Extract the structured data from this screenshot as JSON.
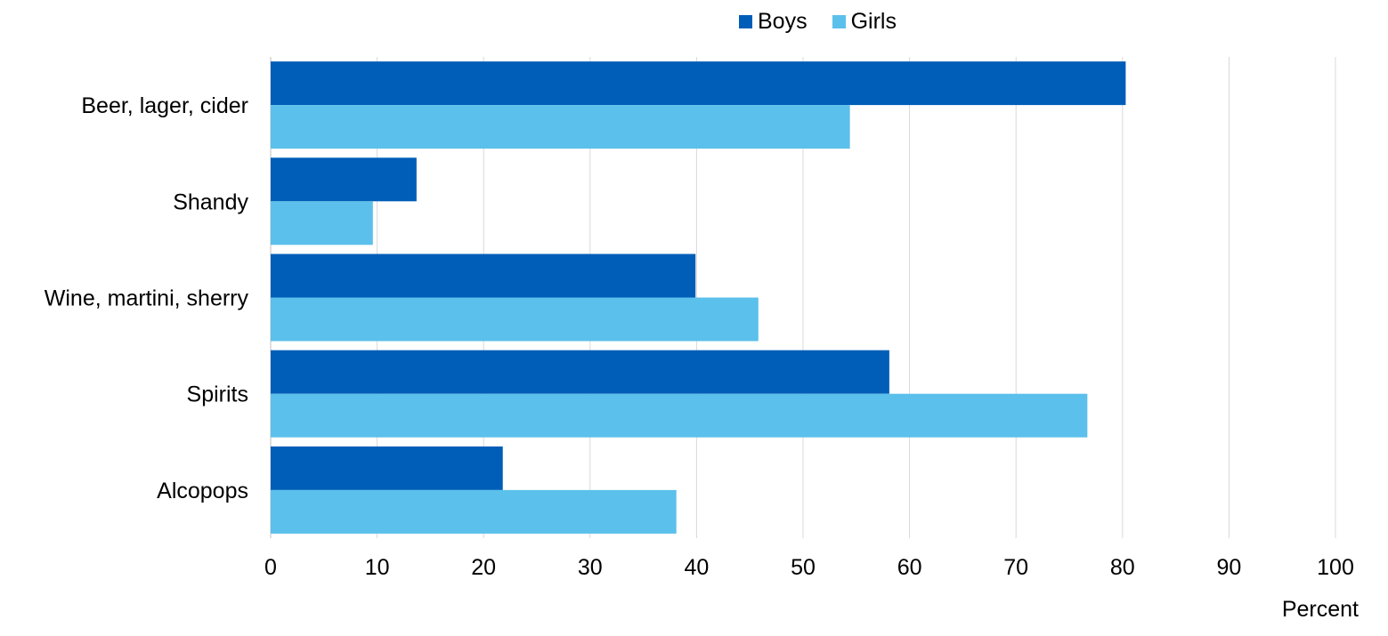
{
  "chart_data": {
    "type": "bar",
    "orientation": "horizontal",
    "categories": [
      "Beer, lager, cider",
      "Shandy",
      "Wine, martini, sherry",
      "Spirits",
      "Alcopops"
    ],
    "series": [
      {
        "name": "Boys",
        "color": "#005EB8",
        "values": [
          80.3,
          13.7,
          39.9,
          58.1,
          21.8
        ]
      },
      {
        "name": "Girls",
        "color": "#5BC0EB",
        "values": [
          54.4,
          9.6,
          45.8,
          76.7,
          38.1
        ]
      }
    ],
    "xlabel": "Percent",
    "xlim": [
      0,
      100
    ],
    "xticks": [
      0,
      10,
      20,
      30,
      40,
      50,
      60,
      70,
      80,
      90,
      100
    ],
    "grid": true,
    "legend_position": "top"
  }
}
